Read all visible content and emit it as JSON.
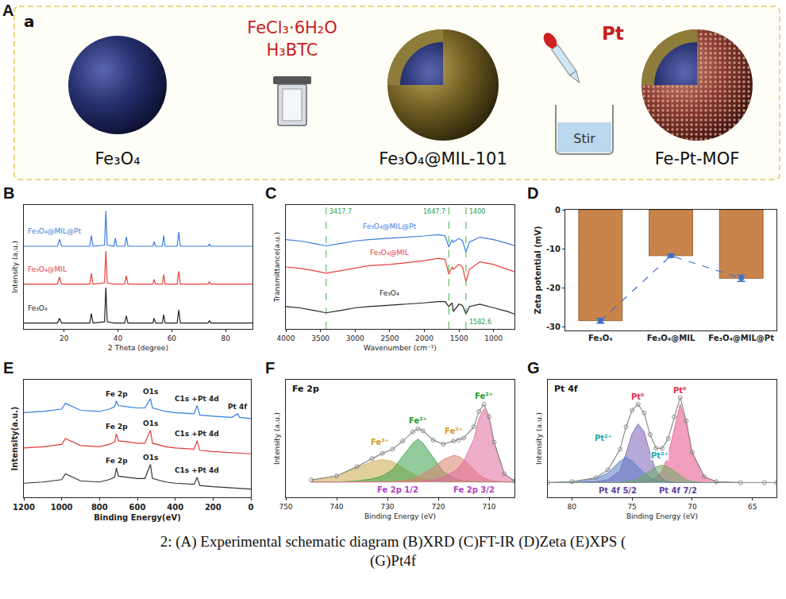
{
  "schematic": {
    "panel": "A",
    "label": "a",
    "core": "Fe₃O₄",
    "reagents": [
      "FeCl₃·6H₂O",
      "H₃BTC"
    ],
    "intermediate": "Fe₃O₄@MIL-101",
    "additive": "Pt",
    "action": "Stir",
    "product": "Fe-Pt-MOF"
  },
  "chart_data": [
    {
      "panel": "B",
      "type": "line",
      "xlabel": "2 Theta (degree)",
      "ylabel": "Intensity (a.u.)",
      "x": [
        5,
        17.5,
        18.3,
        19,
        29.5,
        30.1,
        30.7,
        35,
        35.5,
        36,
        38.5,
        39,
        39.5,
        42.5,
        43.1,
        43.7,
        53,
        53.4,
        54,
        56.5,
        57,
        57.5,
        62,
        62.6,
        63.2,
        73.5,
        74,
        74.5,
        90
      ],
      "series": [
        {
          "name": "Fe₃O₄",
          "color": "#222222",
          "values": [
            5,
            5,
            9,
            5,
            5,
            13,
            5,
            6,
            35,
            6,
            5,
            5,
            5,
            5,
            11,
            5,
            5,
            9,
            5,
            5,
            12,
            5,
            5,
            16,
            5,
            5,
            7,
            5,
            5
          ]
        },
        {
          "name": "Fe₃O₄@MIL",
          "color": "#e8413c",
          "values": [
            38,
            38,
            44,
            38,
            38,
            47,
            38,
            39,
            66,
            39,
            38,
            38,
            38,
            38,
            45,
            38,
            38,
            42,
            38,
            38,
            46,
            38,
            38,
            49,
            38,
            38,
            40,
            38,
            38
          ]
        },
        {
          "name": "Fe₃O₄@MIL@Pt",
          "color": "#3b7ddd",
          "values": [
            70,
            70,
            76,
            70,
            70,
            79,
            70,
            71,
            100,
            71,
            70,
            77,
            70,
            70,
            78,
            70,
            70,
            74,
            70,
            70,
            79,
            70,
            70,
            82,
            70,
            70,
            72,
            70,
            70
          ]
        }
      ],
      "xlim": [
        5,
        90
      ],
      "xticks": [
        20,
        40,
        60,
        80
      ],
      "ylim": [
        0,
        105
      ],
      "tick_labels": "x"
    },
    {
      "panel": "C",
      "type": "line",
      "xlabel": "Wavenumber (cm⁻¹)",
      "ylabel": "Transmittance(a.u.)",
      "x": [
        4000,
        3800,
        3600,
        3417.7,
        3200,
        3000,
        2800,
        2500,
        2200,
        2000,
        1800,
        1700,
        1647.7,
        1600,
        1582.6,
        1500,
        1450,
        1400,
        1350,
        1200,
        1000,
        800,
        700
      ],
      "series": [
        {
          "name": "Fe₃O₄",
          "color": "#222222",
          "values": [
            18,
            17,
            15,
            13,
            15,
            17,
            18,
            19,
            20,
            21,
            22,
            22,
            18,
            21,
            14,
            20,
            19,
            12,
            18,
            20,
            17,
            14,
            12
          ]
        },
        {
          "name": "Fe₃O₄@MIL",
          "color": "#e8413c",
          "values": [
            50,
            49,
            47,
            45,
            47,
            49,
            51,
            52,
            54,
            55,
            57,
            56,
            44,
            50,
            48,
            52,
            50,
            38,
            48,
            54,
            52,
            48,
            46
          ]
        },
        {
          "name": "Fe₃O₄@MIL@Pt",
          "color": "#3b7ddd",
          "values": [
            72,
            71,
            69,
            67,
            69,
            71,
            72,
            73,
            74,
            75,
            76,
            75,
            66,
            72,
            70,
            73,
            71,
            62,
            70,
            74,
            72,
            69,
            67
          ]
        }
      ],
      "vlines": [
        3417.7,
        1647.7,
        1400
      ],
      "annotations": [
        {
          "x": 3417.7,
          "text": "3417.7"
        },
        {
          "x": 1647.7,
          "text": "1647.7"
        },
        {
          "x": 1400,
          "text": "1400"
        },
        {
          "x": 1582.6,
          "text": "1582.6"
        }
      ],
      "xlim": [
        4000,
        700
      ],
      "xticks": [
        4000,
        3500,
        3000,
        2500,
        2000,
        1500,
        1000
      ],
      "ylim": [
        0,
        100
      ],
      "tick_labels": "x"
    },
    {
      "panel": "D",
      "type": "bar",
      "ylabel": "Zeta potential (mV)",
      "categories": [
        "Fe₃O₄",
        "Fe₃O₄@MIL",
        "Fe₃O₄@MIL@Pt"
      ],
      "series": [
        {
          "type": "bar",
          "color": "#c8844a",
          "values": [
            -28.5,
            -11.8,
            -17.6
          ]
        },
        {
          "type": "line",
          "line_style": "dashed",
          "marker": "circle",
          "color": "#3b6fc9",
          "values": [
            -28.5,
            -11.8,
            -17.6
          ],
          "errors": [
            0.6,
            0.4,
            0.8
          ]
        }
      ],
      "ylim": [
        -31,
        0
      ],
      "yticks": [
        0,
        -10,
        -20,
        -30
      ]
    },
    {
      "panel": "E",
      "type": "line",
      "xlabel": "Binding Energy(eV)",
      "ylabel": "Intensity(a.u.)",
      "x": [
        1200,
        1100,
        1000,
        980,
        900,
        800,
        750,
        720,
        711,
        700,
        650,
        600,
        560,
        531,
        520,
        450,
        400,
        300,
        284,
        270,
        200,
        100,
        71,
        60,
        0
      ],
      "series": [
        {
          "color": "#333333",
          "values": [
            12,
            13,
            15,
            20,
            14,
            13,
            15,
            17,
            25,
            18,
            17,
            16,
            16,
            28,
            16,
            13,
            12,
            11,
            17,
            10,
            9,
            8,
            8,
            8,
            7
          ],
          "labels": [
            {
              "x": 711,
              "text": "Fe 2p"
            },
            {
              "x": 531,
              "text": "O1s"
            },
            {
              "x": 284,
              "text": "C1s +Pt 4d"
            }
          ]
        },
        {
          "color": "#e03a3a",
          "values": [
            42,
            43,
            45,
            50,
            44,
            43,
            45,
            47,
            54,
            48,
            47,
            46,
            46,
            57,
            46,
            43,
            42,
            41,
            48,
            40,
            39,
            38,
            38,
            38,
            37
          ],
          "labels": [
            {
              "x": 711,
              "text": "Fe 2p"
            },
            {
              "x": 531,
              "text": "O1s"
            },
            {
              "x": 284,
              "text": "C1s +Pt 4d"
            }
          ]
        },
        {
          "color": "#2f7fe0",
          "values": [
            72,
            73,
            75,
            80,
            74,
            73,
            75,
            77,
            82,
            78,
            77,
            76,
            76,
            84,
            76,
            73,
            72,
            71,
            78,
            70,
            69,
            68,
            71,
            68,
            67
          ],
          "labels": [
            {
              "x": 711,
              "text": "Fe 2p"
            },
            {
              "x": 531,
              "text": "O1s"
            },
            {
              "x": 284,
              "text": "C1s +Pt 4d"
            },
            {
              "x": 71,
              "text": "Pt 4f"
            }
          ]
        }
      ],
      "xlim": [
        1200,
        0
      ],
      "xticks": [
        1200,
        1000,
        800,
        600,
        400,
        200,
        0
      ],
      "ylim": [
        0,
        100
      ],
      "tick_labels": "x"
    },
    {
      "panel": "F",
      "type": "line",
      "title": "Fe 2p",
      "xlabel": "Binding Energy (eV)",
      "ylabel": "Intensity (a.u.)",
      "x": [
        745,
        740,
        736,
        733,
        731,
        729,
        727,
        725,
        724,
        723,
        721,
        719,
        717,
        716,
        715,
        713,
        712,
        711,
        710,
        709,
        707,
        705
      ],
      "series": [
        {
          "type": "area",
          "color": "#c9a94a",
          "values": [
            2,
            6,
            14,
            20,
            22,
            20,
            14,
            8,
            5,
            3,
            1,
            0,
            0,
            0,
            0,
            0,
            0,
            0,
            0,
            0,
            0,
            0
          ]
        },
        {
          "type": "area",
          "color": "#3aa04a",
          "values": [
            0,
            0,
            1,
            3,
            6,
            12,
            25,
            38,
            42,
            38,
            24,
            10,
            4,
            2,
            1,
            0,
            0,
            0,
            0,
            0,
            0,
            0
          ]
        },
        {
          "type": "area",
          "color": "#d9826a",
          "values": [
            0,
            0,
            0,
            0,
            0,
            0,
            1,
            3,
            5,
            8,
            14,
            22,
            26,
            25,
            22,
            12,
            7,
            4,
            2,
            1,
            0,
            0
          ]
        },
        {
          "type": "area",
          "color": "#e06a9a",
          "values": [
            0,
            0,
            0,
            0,
            0,
            0,
            0,
            0,
            0,
            1,
            2,
            5,
            10,
            14,
            20,
            42,
            62,
            72,
            62,
            38,
            8,
            1
          ]
        },
        {
          "type": "line",
          "marker": "circle",
          "color": "#8c8c8c",
          "values": [
            2,
            6,
            15,
            23,
            28,
            32,
            40,
            49,
            52,
            50,
            41,
            37,
            40,
            41,
            43,
            54,
            69,
            76,
            64,
            39,
            8,
            1
          ]
        }
      ],
      "annotations": [
        {
          "x": 731.5,
          "y": 34,
          "text": "Fe³⁺",
          "color": "#d99a20"
        },
        {
          "x": 724,
          "y": 55,
          "text": "Fe²⁺",
          "color": "#2a9a2a"
        },
        {
          "x": 717,
          "y": 45,
          "text": "Fe³⁺",
          "color": "#d99a20"
        },
        {
          "x": 711,
          "y": 79,
          "text": "Fe²⁺",
          "color": "#2a9a2a"
        },
        {
          "x": 728,
          "y": -13,
          "text": "Fe 2p 1/2",
          "color": "#b040c0"
        },
        {
          "x": 713,
          "y": -13,
          "text": "Fe 2p 3/2",
          "color": "#b040c0"
        }
      ],
      "xlim": [
        750,
        705
      ],
      "xticks": [
        750,
        740,
        730,
        720,
        710
      ],
      "ylim": [
        -15,
        100
      ],
      "tick_labels": "x"
    },
    {
      "panel": "G",
      "type": "line",
      "title": "Pt 4f",
      "xlabel": "Binding Energy (eV)",
      "ylabel": "Intensity (a.u.)",
      "x": [
        82,
        80,
        78,
        77,
        76,
        75.5,
        75,
        74.5,
        74,
        73.5,
        73,
        72.5,
        72,
        71.5,
        71,
        70.5,
        70,
        69,
        68,
        66,
        64,
        63
      ],
      "series": [
        {
          "type": "area",
          "color": "#e8508a",
          "values": [
            0,
            0,
            0,
            0,
            0,
            0,
            0,
            0,
            1,
            2,
            5,
            12,
            28,
            55,
            80,
            60,
            30,
            6,
            1,
            0,
            0,
            0
          ]
        },
        {
          "type": "area",
          "color": "#7a62b8",
          "values": [
            0,
            0,
            1,
            3,
            12,
            30,
            50,
            60,
            52,
            30,
            12,
            4,
            1,
            0,
            0,
            0,
            0,
            0,
            0,
            0,
            0,
            0
          ]
        },
        {
          "type": "area",
          "color": "#5a7cc4",
          "values": [
            0,
            1,
            4,
            10,
            22,
            26,
            22,
            16,
            10,
            5,
            2,
            1,
            0,
            0,
            0,
            0,
            0,
            0,
            0,
            0,
            0,
            0
          ]
        },
        {
          "type": "area",
          "color": "#6aaa60",
          "values": [
            0,
            0,
            0,
            0,
            0,
            1,
            2,
            4,
            8,
            12,
            16,
            18,
            16,
            12,
            7,
            3,
            1,
            0,
            0,
            0,
            0,
            0
          ]
        },
        {
          "type": "line",
          "marker": "circle",
          "color": "#8c8c8c",
          "values": [
            0,
            1,
            5,
            13,
            34,
            57,
            74,
            80,
            71,
            49,
            35,
            35,
            45,
            67,
            87,
            63,
            31,
            6,
            1,
            0,
            0,
            0
          ]
        }
      ],
      "annotations": [
        {
          "x": 71,
          "y": 89,
          "text": "Pt⁰",
          "color": "#e0304a"
        },
        {
          "x": 74.5,
          "y": 82,
          "text": "Pt⁰",
          "color": "#e0304a"
        },
        {
          "x": 77.4,
          "y": 40,
          "text": "Pt²⁺",
          "color": "#20a8b0"
        },
        {
          "x": 72.7,
          "y": 22,
          "text": "Pt²⁺",
          "color": "#20a8b0"
        },
        {
          "x": 76.2,
          "y": -13,
          "text": "Pt 4f 5/2",
          "color": "#6040a0"
        },
        {
          "x": 71.2,
          "y": -13,
          "text": "Pt 4f 7/2",
          "color": "#6040a0"
        }
      ],
      "xlim": [
        82,
        63
      ],
      "xticks": [
        80,
        75,
        70,
        65
      ],
      "ylim": [
        -15,
        105
      ],
      "tick_labels": "x"
    }
  ],
  "caption": [
    "2: (A) Experimental schematic diagram (B)XRD (C)FT-IR (D)Zeta (E)XPS (",
    "(G)Pt4f"
  ]
}
